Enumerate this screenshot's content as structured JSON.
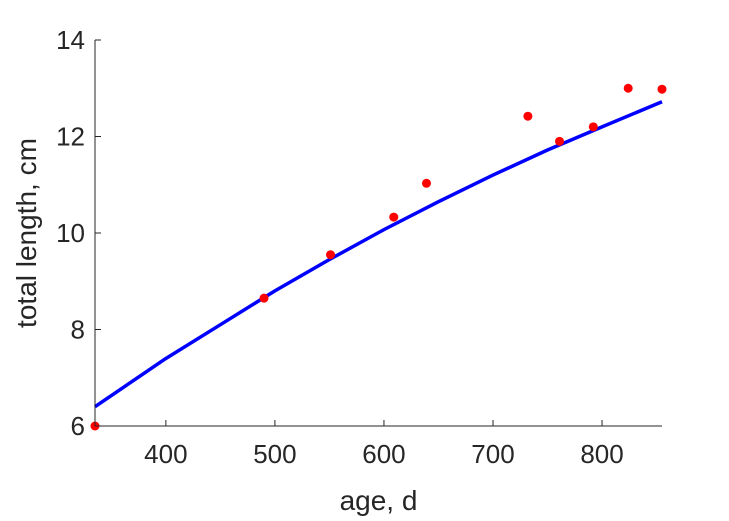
{
  "chart_data": {
    "type": "scatter",
    "title": "",
    "xlabel": "age, d",
    "ylabel": "total length, cm",
    "xlim": [
      335,
      855
    ],
    "ylim": [
      6,
      14
    ],
    "xticks": [
      400,
      500,
      600,
      700,
      800
    ],
    "yticks": [
      6,
      8,
      10,
      12,
      14
    ],
    "grid": false,
    "legend": "none",
    "series": [
      {
        "type": "scatter",
        "color": "#ff0000",
        "x": [
          335,
          490,
          551,
          609,
          639,
          732,
          761,
          792,
          824,
          855
        ],
        "y": [
          6.0,
          8.65,
          9.55,
          10.33,
          11.03,
          12.42,
          11.9,
          12.2,
          13.0,
          12.98
        ]
      },
      {
        "type": "line",
        "color": "#0000ff",
        "x": [
          335,
          400,
          450,
          500,
          550,
          600,
          650,
          700,
          750,
          800,
          855
        ],
        "y": [
          6.4,
          7.4,
          8.1,
          8.8,
          9.45,
          10.07,
          10.65,
          11.2,
          11.72,
          12.2,
          12.72
        ]
      }
    ]
  }
}
